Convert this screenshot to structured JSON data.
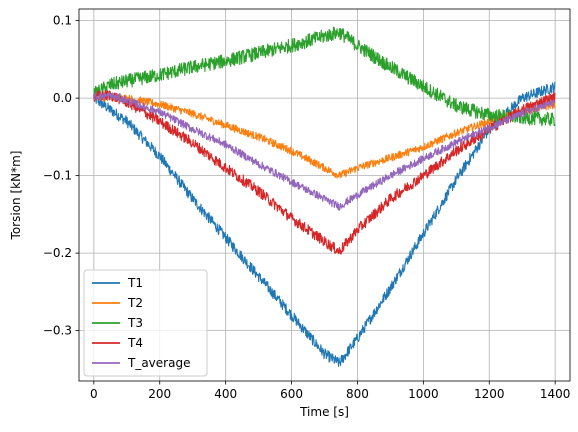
{
  "chart_data": {
    "type": "line",
    "title": "",
    "xlabel": "Time [s]",
    "ylabel": "Torsion [kN*m]",
    "xlim": [
      -45,
      1445
    ],
    "ylim": [
      -0.365,
      0.115
    ],
    "xticks": [
      0,
      200,
      400,
      600,
      800,
      1000,
      1200,
      1400
    ],
    "yticks": [
      0.1,
      0.0,
      -0.1,
      -0.2,
      -0.3
    ],
    "ytick_labels": [
      "0.1",
      "0.0",
      "−0.1",
      "−0.2",
      "−0.3"
    ],
    "grid": true,
    "legend_position": "lower-left",
    "series": [
      {
        "name": "T1",
        "color": "#1f77b4",
        "noise": 0.007,
        "points": [
          [
            0,
            0.0
          ],
          [
            50,
            -0.015
          ],
          [
            100,
            -0.03
          ],
          [
            200,
            -0.075
          ],
          [
            300,
            -0.13
          ],
          [
            400,
            -0.18
          ],
          [
            500,
            -0.23
          ],
          [
            600,
            -0.28
          ],
          [
            700,
            -0.33
          ],
          [
            745,
            -0.342
          ],
          [
            800,
            -0.31
          ],
          [
            900,
            -0.245
          ],
          [
            1000,
            -0.175
          ],
          [
            1100,
            -0.105
          ],
          [
            1200,
            -0.04
          ],
          [
            1300,
            0.0
          ],
          [
            1400,
            0.015
          ]
        ]
      },
      {
        "name": "T2",
        "color": "#ff7f0e",
        "noise": 0.005,
        "points": [
          [
            0,
            0.002
          ],
          [
            100,
            0.0
          ],
          [
            200,
            -0.008
          ],
          [
            300,
            -0.02
          ],
          [
            400,
            -0.035
          ],
          [
            500,
            -0.05
          ],
          [
            600,
            -0.068
          ],
          [
            700,
            -0.09
          ],
          [
            745,
            -0.1
          ],
          [
            800,
            -0.09
          ],
          [
            900,
            -0.077
          ],
          [
            1000,
            -0.063
          ],
          [
            1100,
            -0.045
          ],
          [
            1200,
            -0.03
          ],
          [
            1300,
            -0.018
          ],
          [
            1400,
            -0.008
          ]
        ]
      },
      {
        "name": "T3",
        "color": "#2ca02c",
        "noise": 0.009,
        "points": [
          [
            0,
            0.005
          ],
          [
            50,
            0.017
          ],
          [
            100,
            0.022
          ],
          [
            200,
            0.03
          ],
          [
            300,
            0.04
          ],
          [
            400,
            0.048
          ],
          [
            500,
            0.058
          ],
          [
            600,
            0.068
          ],
          [
            700,
            0.08
          ],
          [
            745,
            0.085
          ],
          [
            800,
            0.068
          ],
          [
            900,
            0.04
          ],
          [
            1000,
            0.015
          ],
          [
            1100,
            -0.01
          ],
          [
            1200,
            -0.022
          ],
          [
            1300,
            -0.025
          ],
          [
            1400,
            -0.028
          ]
        ]
      },
      {
        "name": "T4",
        "color": "#d62728",
        "noise": 0.007,
        "points": [
          [
            0,
            0.002
          ],
          [
            50,
            0.004
          ],
          [
            100,
            -0.005
          ],
          [
            200,
            -0.03
          ],
          [
            300,
            -0.058
          ],
          [
            400,
            -0.09
          ],
          [
            500,
            -0.12
          ],
          [
            600,
            -0.155
          ],
          [
            700,
            -0.185
          ],
          [
            745,
            -0.198
          ],
          [
            800,
            -0.17
          ],
          [
            900,
            -0.13
          ],
          [
            1000,
            -0.1
          ],
          [
            1100,
            -0.068
          ],
          [
            1200,
            -0.04
          ],
          [
            1300,
            -0.015
          ],
          [
            1400,
            0.002
          ]
        ]
      },
      {
        "name": "T_average",
        "color": "#9467bd",
        "noise": 0.005,
        "points": [
          [
            0,
            0.002
          ],
          [
            50,
            0.003
          ],
          [
            100,
            -0.003
          ],
          [
            200,
            -0.018
          ],
          [
            300,
            -0.04
          ],
          [
            400,
            -0.06
          ],
          [
            500,
            -0.085
          ],
          [
            600,
            -0.108
          ],
          [
            700,
            -0.13
          ],
          [
            745,
            -0.14
          ],
          [
            800,
            -0.125
          ],
          [
            900,
            -0.1
          ],
          [
            1000,
            -0.078
          ],
          [
            1100,
            -0.057
          ],
          [
            1200,
            -0.038
          ],
          [
            1300,
            -0.02
          ],
          [
            1400,
            -0.005
          ]
        ]
      }
    ]
  }
}
